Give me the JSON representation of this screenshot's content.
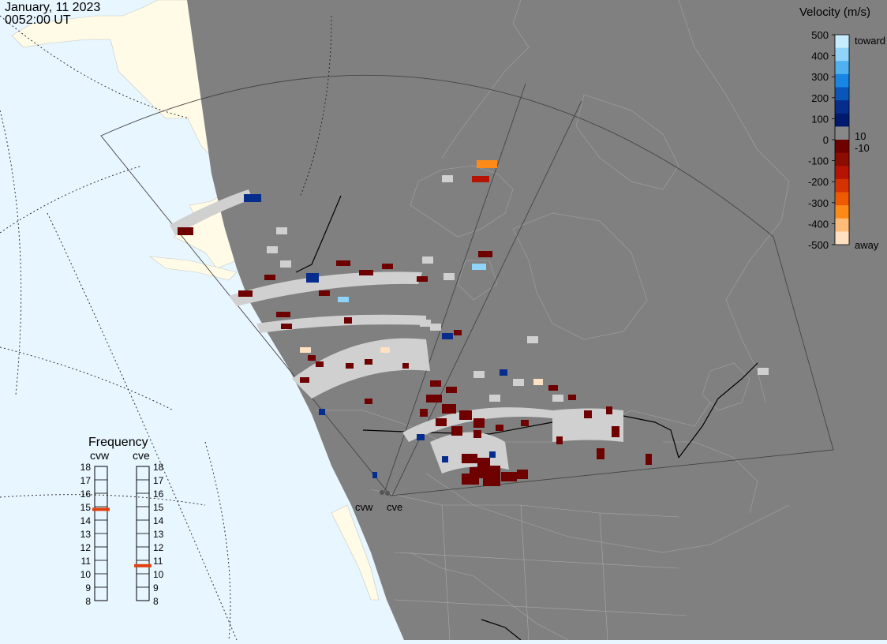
{
  "header": {
    "date": "January, 11 2023",
    "time": "0052:00 UT"
  },
  "legend": {
    "title": "Velocity (m/s)",
    "ticks": [
      "500",
      "400",
      "300",
      "200",
      "100",
      "0",
      "-100",
      "-200",
      "-300",
      "-400",
      "-500"
    ],
    "label_toward": "toward",
    "label_away": "away",
    "label_pos_small": "10",
    "label_neg_small": "-10",
    "colors": [
      "#c8ecff",
      "#90d4fa",
      "#50b0f0",
      "#1a86e4",
      "#0a56b8",
      "#062c8c",
      "#001a6e",
      "#888888",
      "#6e0000",
      "#8c0c00",
      "#b41400",
      "#d43200",
      "#ee5a00",
      "#ff8a18",
      "#ffbc78",
      "#ffe0c0"
    ]
  },
  "frequency": {
    "title": "Frequency",
    "radars": [
      "cvw",
      "cve"
    ],
    "ticks": [
      "18",
      "17",
      "16",
      "15",
      "14",
      "13",
      "12",
      "11",
      "10",
      "9",
      "8"
    ],
    "cvw_mhz": 14.8,
    "cve_mhz": 10.6,
    "indicator_color": "#e04010"
  },
  "map": {
    "ocean_color": "#e8f6ff",
    "land_color": "#fffbe6",
    "night_color": "#808080",
    "no_data_color": "#d0d0d0",
    "radar_labels": [
      "cvw",
      "cve"
    ]
  }
}
